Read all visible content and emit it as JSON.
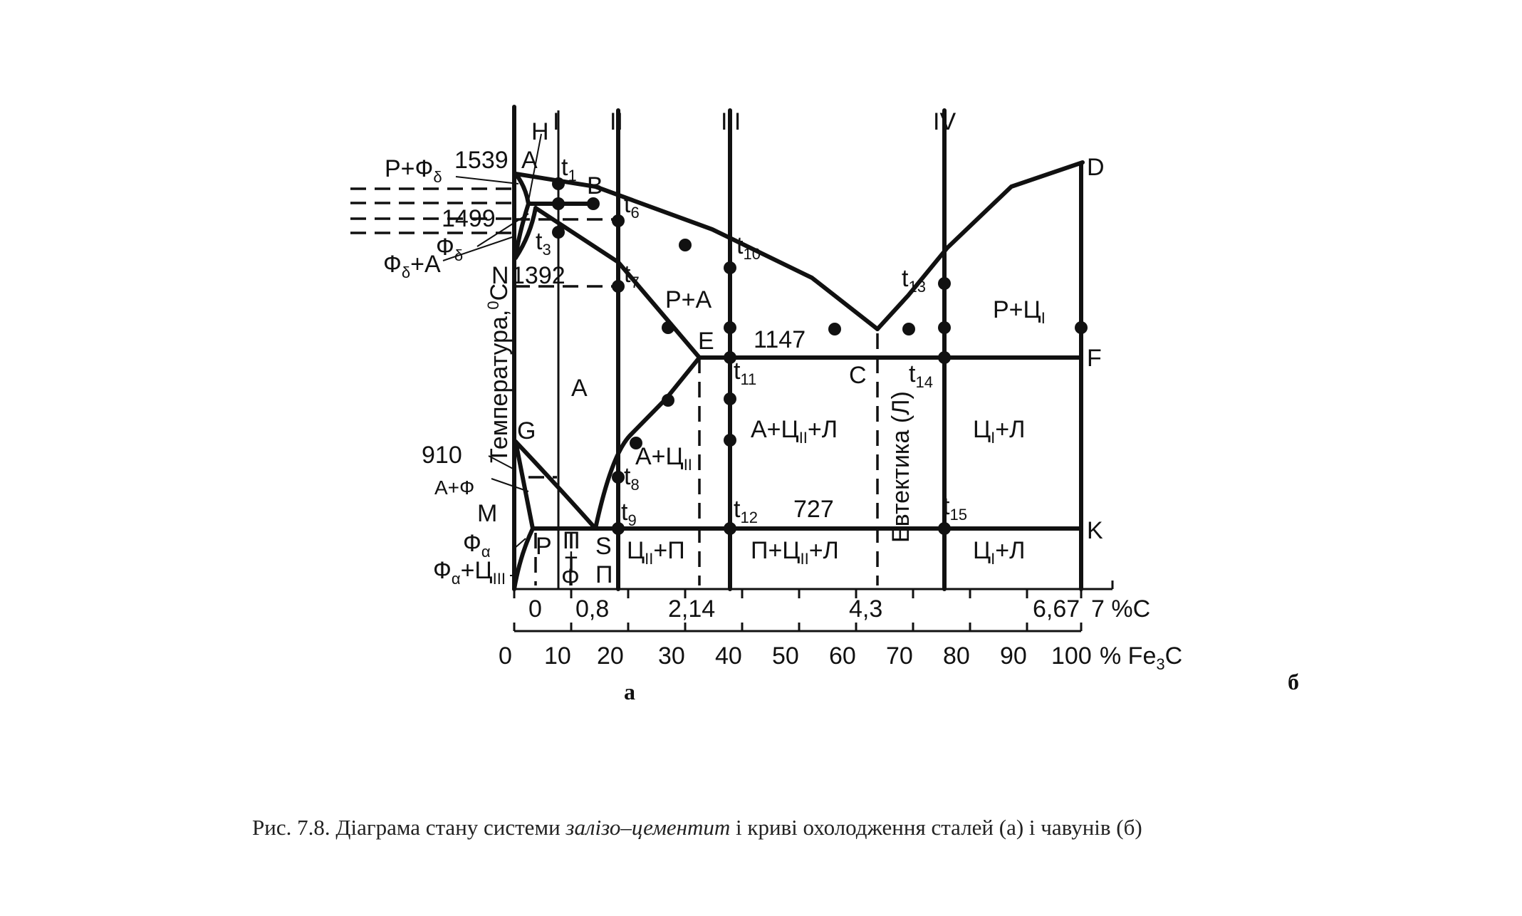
{
  "points": {
    "A": "A",
    "H": "H",
    "B": "B",
    "D": "D",
    "N": "N",
    "E": "E",
    "C": "C",
    "F": "F",
    "G": "G",
    "M": "M",
    "P": "P",
    "S": "S",
    "K": "K"
  },
  "temperatures": {
    "t1539": "1539",
    "t1499": "1499",
    "t1392": "1392",
    "t1147": "1147",
    "t910": "910",
    "t727": "727"
  },
  "alloys": [
    "I",
    "II",
    "III",
    "IV"
  ],
  "t_labels": {
    "t1": "1",
    "t3": "3",
    "t6": "6",
    "t7": "7",
    "t8": "8",
    "t9": "9",
    "t10": "10",
    "t11": "11",
    "t12": "12",
    "t13": "13",
    "t14": "14",
    "t15": "15"
  },
  "phases": {
    "r_fd": "Р+Ф",
    "fd": "Ф",
    "fd_a": "Ф",
    "fd_a_tail": "+А",
    "r_a": "Р+А",
    "a": "А",
    "r_c1": "Р+Ц",
    "a_c2": "А+Ц",
    "a_c2_l": "А+Ц",
    "a_c2_l_tail": "+Л",
    "c1_l_upper": "Ц",
    "c1_l_upper_tail": "+Л",
    "a_f": "А+Ф",
    "fa": "Ф",
    "fa_c3": "Ф",
    "fa_c3_mid": "+Ц",
    "p_f_stack": [
      "П",
      "+",
      "Ф"
    ],
    "p_vert": "П",
    "c2_p": "Ц",
    "c2_p_tail": "+П",
    "p_c2_l": "П+Ц",
    "p_c2_l_tail": "+Л",
    "c1_l_lower": "Ц",
    "c1_l_lower_tail": "+Л",
    "eutectic": "Евтектика (Л)"
  },
  "axis": {
    "y_label": "Температура,",
    "y_unit_sup": "0",
    "y_unit": "С",
    "carbon_ticks": [
      "0",
      "0,8",
      "2,14",
      "4,3",
      "6,67"
    ],
    "carbon_tail": "7 %C",
    "fe3c_ticks": [
      "0",
      "10",
      "20",
      "30",
      "40",
      "50",
      "60",
      "70",
      "80",
      "90",
      "100"
    ],
    "fe3c_unit_pre": "% Fe",
    "fe3c_unit_sub": "3",
    "fe3c_unit_post": "С"
  },
  "panel_labels": {
    "a": "а",
    "b": "б"
  },
  "caption": {
    "pre": "Рис. 7.8. Діаграма стану системи ",
    "italic": "залізо–цементит",
    "post": " і криві охолодження сталей (а) і чавунів (б)"
  }
}
